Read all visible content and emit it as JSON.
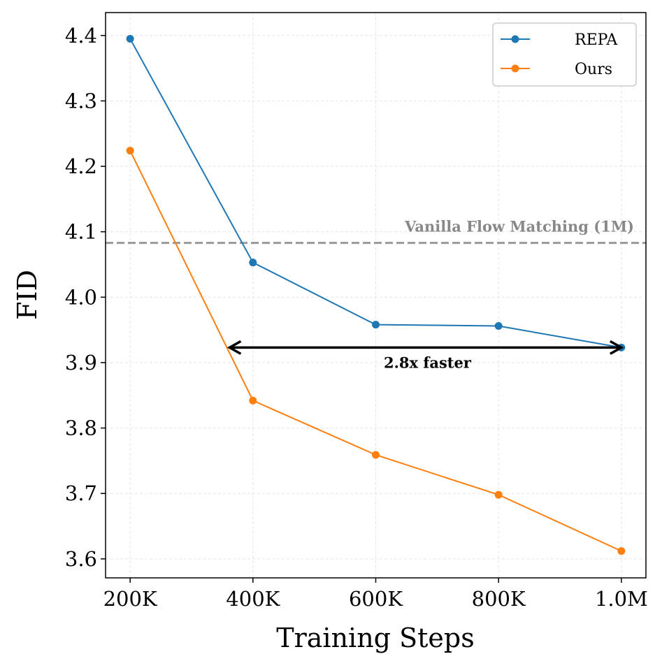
{
  "chart_data": {
    "type": "line",
    "title": "",
    "xlabel": "Training Steps",
    "ylabel": "FID",
    "x": [
      200000,
      400000,
      600000,
      800000,
      1000000
    ],
    "x_tick_labels": [
      "200K",
      "400K",
      "600K",
      "800K",
      "1.0M"
    ],
    "y_ticks": [
      3.6,
      3.7,
      3.8,
      3.9,
      4.0,
      4.1,
      4.2,
      4.3,
      4.4
    ],
    "y_tick_labels": [
      "3.6",
      "3.7",
      "3.8",
      "3.9",
      "4.0",
      "4.1",
      "4.2",
      "4.3",
      "4.4"
    ],
    "xlim": [
      160000,
      1040000
    ],
    "ylim": [
      3.571,
      4.435
    ],
    "grid": true,
    "legend_position": "top-right",
    "series": [
      {
        "name": "REPA",
        "color": "#1f77b4",
        "values": [
          4.395,
          4.053,
          3.958,
          3.956,
          3.923
        ]
      },
      {
        "name": "Ours",
        "color": "#ff7f0e",
        "values": [
          4.224,
          3.842,
          3.759,
          3.698,
          3.612
        ]
      }
    ],
    "reference_line": {
      "label": "Vanilla Flow Matching (1M)",
      "value": 4.083,
      "color": "#999999"
    },
    "annotation": {
      "label": "2.8x faster",
      "x_start": 362000,
      "x_end": 1000000,
      "y": 3.923
    }
  }
}
